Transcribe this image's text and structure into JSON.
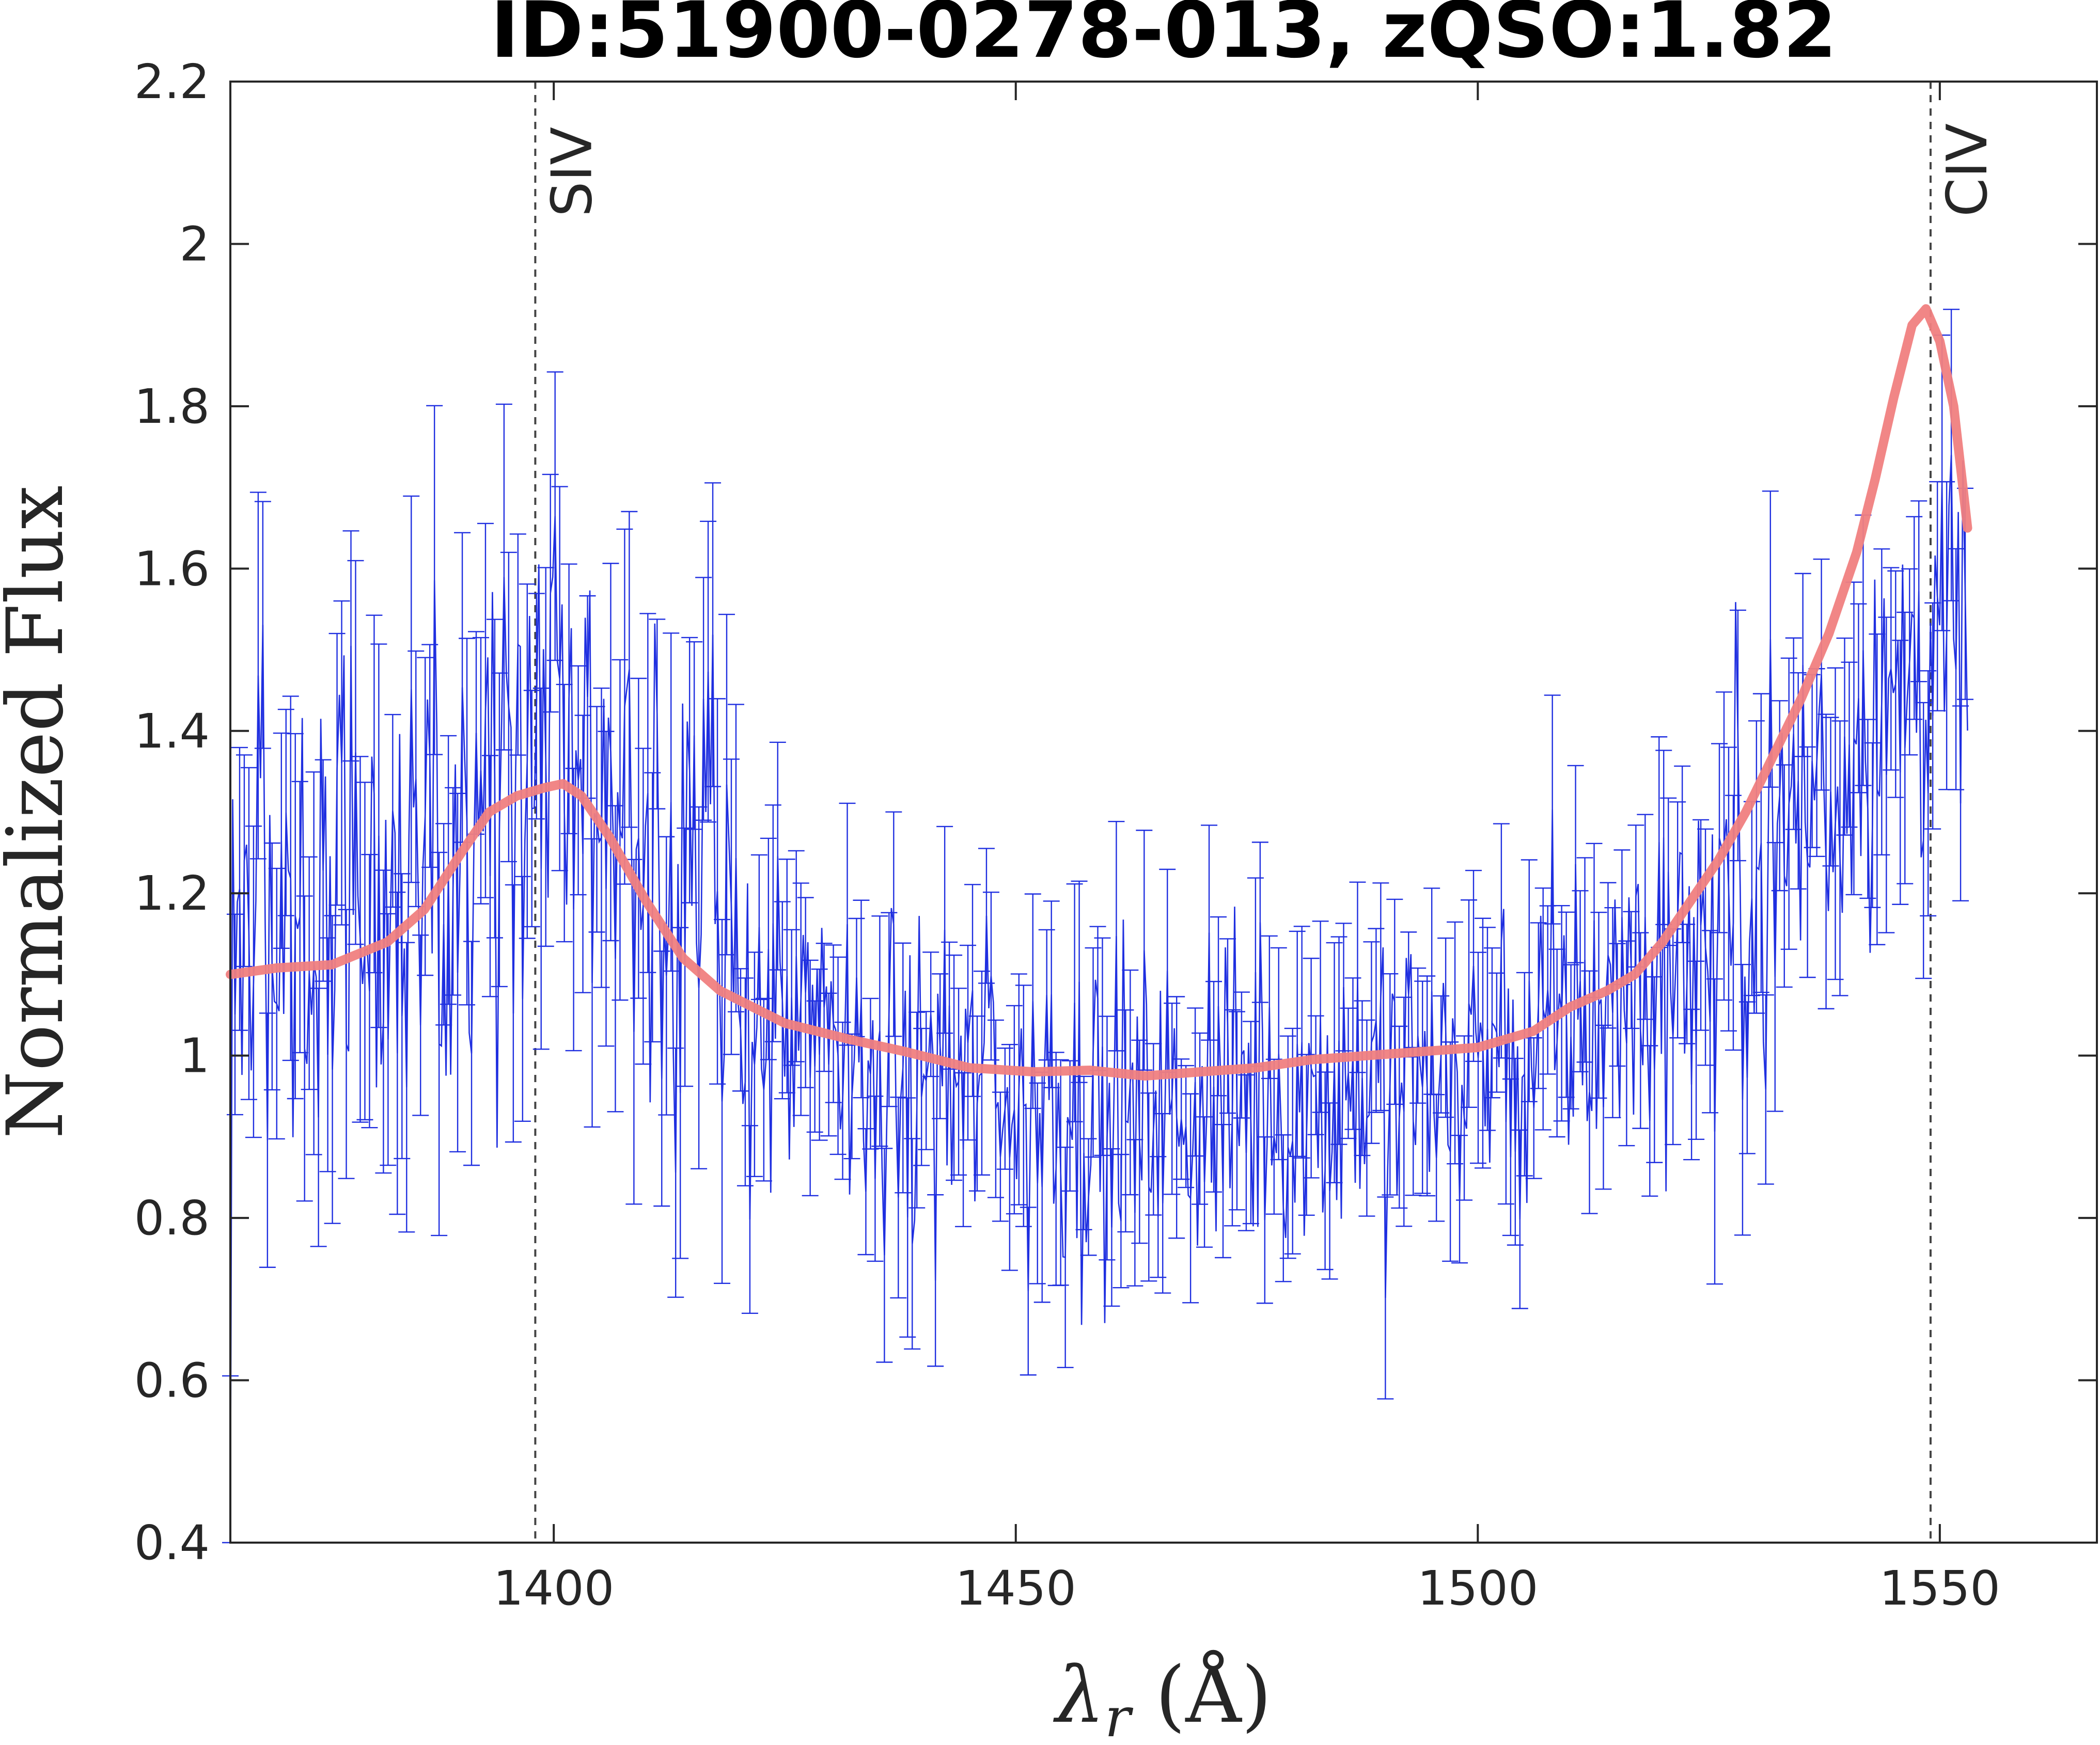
{
  "chart_data": {
    "type": "line",
    "title": "ID:51900-0278-013, zQSO:1.82",
    "xlabel": "λ_r (Å)",
    "ylabel": "Normalized Flux",
    "xlim": [
      1365,
      1567
    ],
    "ylim": [
      0.4,
      2.2
    ],
    "x_ticks": [
      1400,
      1450,
      1500,
      1550
    ],
    "y_ticks": [
      0.4,
      0.6,
      0.8,
      1,
      1.2,
      1.4,
      1.6,
      1.8,
      2,
      2.2
    ],
    "x_tick_labels": [
      "1400",
      "1450",
      "1500",
      "1550"
    ],
    "y_tick_labels": [
      "0.4",
      "0.6",
      "0.8",
      "1",
      "1.2",
      "1.4",
      "1.6",
      "1.8",
      "2",
      "2.2"
    ],
    "grid": false,
    "line_markers": [
      {
        "label": "SIV",
        "x": 1398
      },
      {
        "label": "CIV",
        "x": 1549
      }
    ],
    "series": [
      {
        "kind": "errorbar",
        "color": "#1f2fe0",
        "x_start": 1365,
        "x_end": 1553,
        "n_points": 750,
        "anchors": [
          {
            "x": 1365,
            "y": 1.1
          },
          {
            "x": 1370,
            "y": 1.22
          },
          {
            "x": 1380,
            "y": 1.22
          },
          {
            "x": 1390,
            "y": 1.28
          },
          {
            "x": 1398,
            "y": 1.36
          },
          {
            "x": 1403,
            "y": 1.4
          },
          {
            "x": 1410,
            "y": 1.32
          },
          {
            "x": 1418,
            "y": 1.12
          },
          {
            "x": 1425,
            "y": 1.02
          },
          {
            "x": 1435,
            "y": 0.97
          },
          {
            "x": 1450,
            "y": 0.96
          },
          {
            "x": 1465,
            "y": 0.93
          },
          {
            "x": 1480,
            "y": 0.95
          },
          {
            "x": 1495,
            "y": 0.98
          },
          {
            "x": 1505,
            "y": 1.01
          },
          {
            "x": 1515,
            "y": 1.06
          },
          {
            "x": 1525,
            "y": 1.16
          },
          {
            "x": 1535,
            "y": 1.3
          },
          {
            "x": 1543,
            "y": 1.42
          },
          {
            "x": 1549,
            "y": 1.5
          },
          {
            "x": 1553,
            "y": 1.5
          }
        ]
      },
      {
        "kind": "line",
        "color": "#f08080",
        "points": [
          {
            "x": 1365,
            "y": 1.1
          },
          {
            "x": 1370,
            "y": 1.108
          },
          {
            "x": 1376,
            "y": 1.112
          },
          {
            "x": 1382,
            "y": 1.14
          },
          {
            "x": 1386,
            "y": 1.18
          },
          {
            "x": 1390,
            "y": 1.25
          },
          {
            "x": 1393,
            "y": 1.3
          },
          {
            "x": 1396,
            "y": 1.32
          },
          {
            "x": 1399,
            "y": 1.33
          },
          {
            "x": 1401,
            "y": 1.335
          },
          {
            "x": 1403,
            "y": 1.32
          },
          {
            "x": 1406,
            "y": 1.27
          },
          {
            "x": 1410,
            "y": 1.19
          },
          {
            "x": 1414,
            "y": 1.12
          },
          {
            "x": 1418,
            "y": 1.08
          },
          {
            "x": 1425,
            "y": 1.04
          },
          {
            "x": 1432,
            "y": 1.02
          },
          {
            "x": 1438,
            "y": 1.005
          },
          {
            "x": 1445,
            "y": 0.985
          },
          {
            "x": 1452,
            "y": 0.98
          },
          {
            "x": 1458,
            "y": 0.982
          },
          {
            "x": 1464,
            "y": 0.975
          },
          {
            "x": 1470,
            "y": 0.98
          },
          {
            "x": 1476,
            "y": 0.985
          },
          {
            "x": 1482,
            "y": 0.995
          },
          {
            "x": 1488,
            "y": 1.0
          },
          {
            "x": 1494,
            "y": 1.005
          },
          {
            "x": 1500,
            "y": 1.01
          },
          {
            "x": 1506,
            "y": 1.03
          },
          {
            "x": 1510,
            "y": 1.06
          },
          {
            "x": 1514,
            "y": 1.08
          },
          {
            "x": 1517,
            "y": 1.1
          },
          {
            "x": 1520,
            "y": 1.14
          },
          {
            "x": 1523,
            "y": 1.19
          },
          {
            "x": 1526,
            "y": 1.24
          },
          {
            "x": 1529,
            "y": 1.3
          },
          {
            "x": 1532,
            "y": 1.37
          },
          {
            "x": 1535,
            "y": 1.44
          },
          {
            "x": 1538,
            "y": 1.52
          },
          {
            "x": 1541,
            "y": 1.62
          },
          {
            "x": 1543,
            "y": 1.71
          },
          {
            "x": 1545,
            "y": 1.81
          },
          {
            "x": 1547,
            "y": 1.9
          },
          {
            "x": 1548.5,
            "y": 1.92
          },
          {
            "x": 1550,
            "y": 1.88
          },
          {
            "x": 1551.5,
            "y": 1.8
          },
          {
            "x": 1553,
            "y": 1.65
          }
        ]
      }
    ]
  }
}
